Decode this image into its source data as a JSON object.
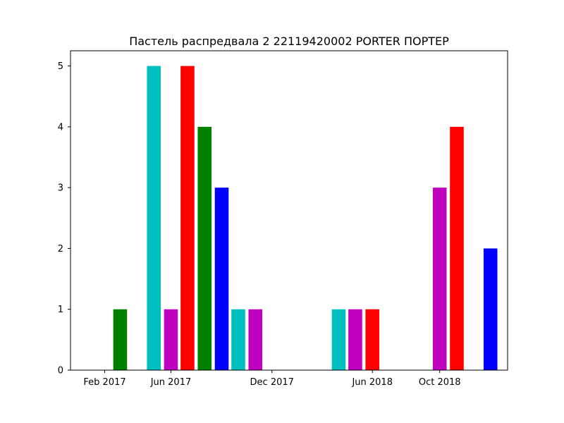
{
  "chart_data": {
    "type": "bar",
    "title": "Пастель распредвала 2 22119420002 PORTER ПОРТЕР",
    "xlabel": "",
    "ylabel": "",
    "grid": false,
    "legend": "none",
    "x_axis": {
      "type": "date",
      "range": [
        "2016-12-01",
        "2019-02-01"
      ],
      "ticks": [
        {
          "date": "2017-02-01",
          "label": "Feb 2017"
        },
        {
          "date": "2017-06-01",
          "label": "Jun 2017"
        },
        {
          "date": "2017-12-01",
          "label": "Dec 2017"
        },
        {
          "date": "2018-06-01",
          "label": "Jun 2018"
        },
        {
          "date": "2018-10-01",
          "label": "Oct 2018"
        }
      ]
    },
    "y_axis": {
      "range": [
        0,
        5.25
      ],
      "ticks": [
        0,
        1,
        2,
        3,
        4,
        5
      ]
    },
    "bars": [
      {
        "date": "2017-03-01",
        "value": 1,
        "color": "#008000"
      },
      {
        "date": "2017-05-01",
        "value": 5,
        "color": "#00bfbf"
      },
      {
        "date": "2017-06-01",
        "value": 1,
        "color": "#bf00bf"
      },
      {
        "date": "2017-07-01",
        "value": 5,
        "color": "#ff0000"
      },
      {
        "date": "2017-08-01",
        "value": 4,
        "color": "#008000"
      },
      {
        "date": "2017-09-01",
        "value": 3,
        "color": "#0000ff"
      },
      {
        "date": "2017-10-01",
        "value": 1,
        "color": "#00bfbf"
      },
      {
        "date": "2017-11-01",
        "value": 1,
        "color": "#bf00bf"
      },
      {
        "date": "2018-04-01",
        "value": 1,
        "color": "#00bfbf"
      },
      {
        "date": "2018-05-01",
        "value": 1,
        "color": "#bf00bf"
      },
      {
        "date": "2018-06-01",
        "value": 1,
        "color": "#ff0000"
      },
      {
        "date": "2018-10-01",
        "value": 3,
        "color": "#bf00bf"
      },
      {
        "date": "2018-11-01",
        "value": 4,
        "color": "#ff0000"
      },
      {
        "date": "2019-01-01",
        "value": 2,
        "color": "#0000ff"
      }
    ]
  }
}
